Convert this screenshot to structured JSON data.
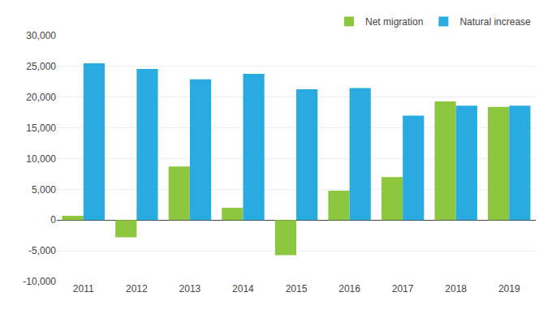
{
  "chart_data": {
    "type": "bar",
    "categories": [
      "2011",
      "2012",
      "2013",
      "2014",
      "2015",
      "2016",
      "2017",
      "2018",
      "2019"
    ],
    "series": [
      {
        "name": "Net migration",
        "color": "#8dc63f",
        "values": [
          700,
          -2800,
          8700,
          2000,
          -5700,
          4800,
          7000,
          19300,
          18400
        ]
      },
      {
        "name": "Natural increase",
        "color": "#29abe2",
        "values": [
          25500,
          24600,
          22900,
          23800,
          21300,
          21500,
          17000,
          18600,
          18600
        ]
      }
    ],
    "ylim": [
      -10000,
      30000
    ],
    "yticks": [
      {
        "value": -10000,
        "label": "-10,000"
      },
      {
        "value": -5000,
        "label": "-5,000"
      },
      0,
      {
        "value": 5000,
        "label": "5,000"
      },
      {
        "value": 10000,
        "label": "10,000"
      },
      {
        "value": 15000,
        "label": "15,000"
      },
      {
        "value": 20000,
        "label": "20,000"
      },
      {
        "value": 25000,
        "label": "25,000"
      },
      {
        "value": 30000,
        "label": "30,000"
      }
    ],
    "grid": true,
    "legend": "upper right"
  }
}
